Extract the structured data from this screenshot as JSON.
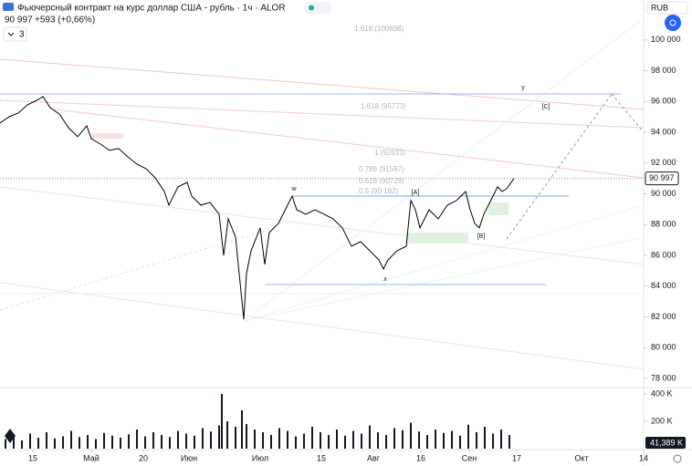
{
  "header": {
    "title": "Фьючерсный контракт на курс доллар США - рубль · 1ч · ALOR",
    "change": "+593 (+0,66%)",
    "indicator_count": "3",
    "currency": "RUB"
  },
  "chart_data": {
    "type": "line",
    "color": "#000000",
    "xlim": [
      0,
      705
    ],
    "xticks": [
      {
        "value": 36,
        "label": "15"
      },
      {
        "value": 100,
        "label": "Май"
      },
      {
        "value": 157,
        "label": "20"
      },
      {
        "value": 207,
        "label": "Июн"
      },
      {
        "value": 285,
        "label": "Июл"
      },
      {
        "value": 352,
        "label": "15"
      },
      {
        "value": 409,
        "label": "Авг"
      },
      {
        "value": 461,
        "label": "16"
      },
      {
        "value": 514,
        "label": "Сен"
      },
      {
        "value": 566,
        "label": "17"
      },
      {
        "value": 637,
        "label": "Окт"
      },
      {
        "value": 705,
        "label": "14"
      }
    ],
    "ylim": [
      77400,
      102600
    ],
    "yticks": [
      {
        "value": 100000,
        "label": "100 000"
      },
      {
        "value": 98000,
        "label": "98 000"
      },
      {
        "value": 96000,
        "label": "96 000"
      },
      {
        "value": 94000,
        "label": "94 000"
      },
      {
        "value": 92000,
        "label": "92 000"
      },
      {
        "value": 90000,
        "label": "90 000"
      },
      {
        "value": 88000,
        "label": "88 000"
      },
      {
        "value": 86000,
        "label": "86 000"
      },
      {
        "value": 84000,
        "label": "84 000"
      },
      {
        "value": 82000,
        "label": "82 000"
      },
      {
        "value": 80000,
        "label": "80 000"
      },
      {
        "value": 78000,
        "label": "78 000"
      }
    ],
    "x": [
      0,
      10,
      20,
      30,
      40,
      47,
      55,
      65,
      75,
      85,
      95,
      100,
      110,
      120,
      130,
      140,
      150,
      160,
      170,
      180,
      185,
      195,
      205,
      210,
      220,
      230,
      240,
      245,
      250,
      258,
      262,
      267,
      270,
      275,
      285,
      290,
      295,
      305,
      315,
      320,
      325,
      335,
      345,
      355,
      365,
      375,
      385,
      395,
      405,
      415,
      420,
      425,
      435,
      445,
      450,
      455,
      460,
      470,
      480,
      490,
      500,
      510,
      515,
      520,
      525,
      530,
      540,
      545,
      550,
      555,
      560,
      563
    ],
    "values": [
      94600,
      95010,
      95250,
      95780,
      96080,
      96320,
      95600,
      95190,
      94300,
      93710,
      94420,
      93590,
      93230,
      92820,
      92940,
      92400,
      91930,
      91630,
      91040,
      90150,
      89260,
      90450,
      90740,
      89850,
      89260,
      89440,
      88670,
      86000,
      88370,
      87190,
      84810,
      81850,
      84810,
      86300,
      87780,
      85410,
      87480,
      88070,
      89260,
      89850,
      88960,
      88670,
      88960,
      88670,
      88370,
      87780,
      86590,
      86890,
      86300,
      85700,
      85110,
      85700,
      86300,
      86590,
      89560,
      88960,
      87780,
      88960,
      88370,
      89260,
      89560,
      90150,
      88960,
      88070,
      87780,
      88670,
      89850,
      90450,
      90150,
      90330,
      90740,
      90997
    ],
    "last_price": {
      "value": 90997,
      "label": "90 997"
    },
    "annotations": [
      "w",
      "x",
      "y",
      "[A]",
      "[B]",
      "[C]",
      "1.618 (100698)",
      "1.618 (95773)",
      "1 (92633)",
      "0.786 (91567)",
      "0.618 (90729)",
      "0.5 (90 162)"
    ],
    "volume": {
      "type": "bar",
      "color": "#131722",
      "y2lim": [
        0,
        447000
      ],
      "y2ticks": [
        {
          "value": 400000,
          "label": "400 K"
        },
        {
          "value": 200000,
          "label": "200 K"
        }
      ],
      "last_label": "41,389 K",
      "x": [
        6,
        15,
        24,
        33,
        42,
        51,
        60,
        69,
        78,
        87,
        96,
        105,
        114,
        123,
        132,
        141,
        150,
        159,
        168,
        177,
        186,
        195,
        204,
        213,
        222,
        231,
        240,
        243,
        249,
        258,
        265,
        270,
        279,
        288,
        297,
        306,
        315,
        324,
        333,
        342,
        351,
        360,
        369,
        378,
        387,
        396,
        405,
        414,
        423,
        432,
        441,
        450,
        459,
        468,
        477,
        486,
        495,
        504,
        513,
        522,
        531,
        540,
        549,
        558
      ],
      "values": [
        70000,
        95000,
        60000,
        110000,
        80000,
        120000,
        75000,
        90000,
        130000,
        85000,
        100000,
        70000,
        115000,
        95000,
        80000,
        105000,
        140000,
        90000,
        120000,
        100000,
        85000,
        130000,
        110000,
        95000,
        150000,
        125000,
        170000,
        400000,
        200000,
        160000,
        280000,
        180000,
        140000,
        120000,
        100000,
        150000,
        130000,
        90000,
        110000,
        160000,
        120000,
        100000,
        140000,
        95000,
        130000,
        110000,
        170000,
        120000,
        100000,
        150000,
        135000,
        190000,
        125000,
        100000,
        140000,
        115000,
        130000,
        95000,
        175000,
        120000,
        160000,
        110000,
        140000,
        100000
      ]
    }
  }
}
